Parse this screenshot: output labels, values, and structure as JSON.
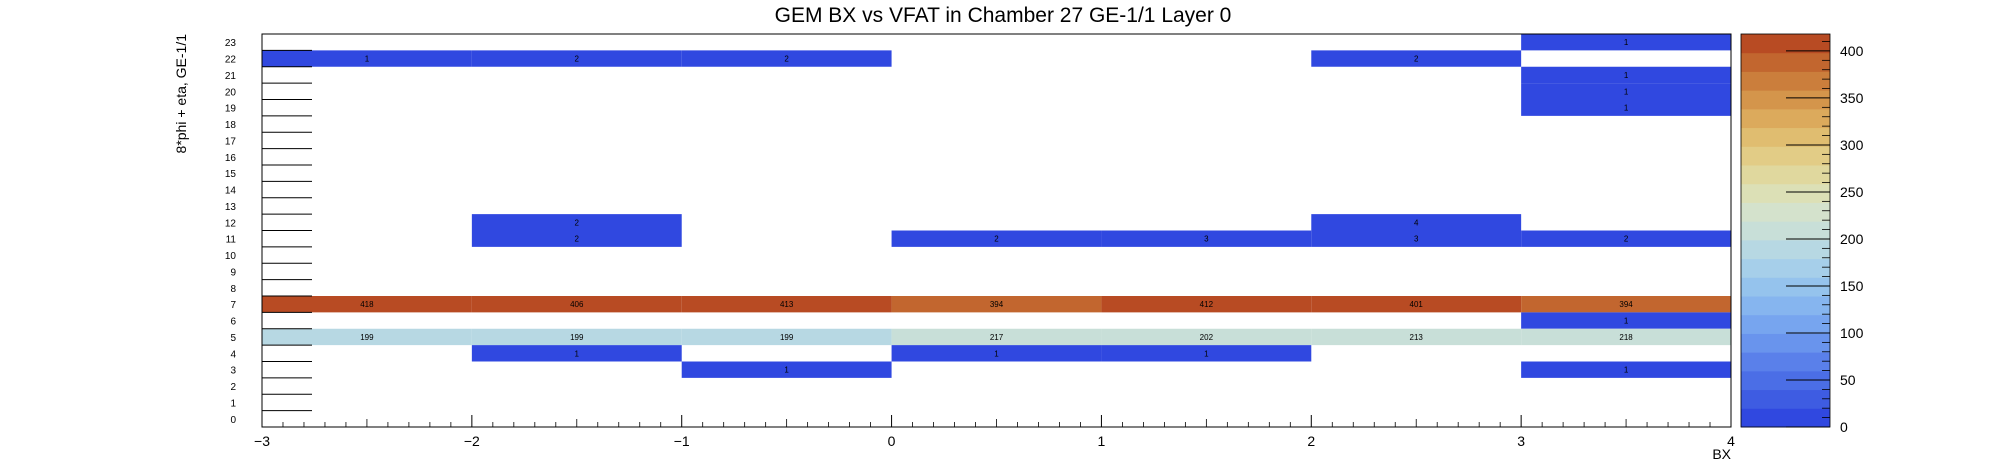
{
  "chart_data": {
    "type": "heatmap",
    "title": "GEM BX vs VFAT in Chamber 27 GE-1/1 Layer 0",
    "xlabel": "BX",
    "ylabel": "8*phi + eta, GE-1/1",
    "xlim": [
      -3,
      4
    ],
    "ylim": [
      0,
      24
    ],
    "x_ticks": [
      "−3",
      "−2",
      "−1",
      "0",
      "1",
      "2",
      "3",
      "4"
    ],
    "y_ticks": [
      "0",
      "1",
      "2",
      "3",
      "4",
      "5",
      "6",
      "7",
      "8",
      "9",
      "10",
      "11",
      "12",
      "13",
      "14",
      "15",
      "16",
      "17",
      "18",
      "19",
      "20",
      "21",
      "22",
      "23"
    ],
    "z_range": [
      0,
      418
    ],
    "colorbar_ticks": [
      "0",
      "50",
      "100",
      "150",
      "200",
      "250",
      "300",
      "350",
      "400"
    ],
    "colorbar_colors": [
      "#3048e0",
      "#3e5ce2",
      "#4b6ee6",
      "#5a80ea",
      "#6994ed",
      "#77a5ef",
      "#86b5ef",
      "#95c3ed",
      "#a6cfea",
      "#b7d8e3",
      "#c8dfd8",
      "#d4e2cc",
      "#dce0b6",
      "#e0d89e",
      "#e2cc86",
      "#e0bd70",
      "#dcaa5c",
      "#d4954b",
      "#cb7e3c",
      "#c2662f",
      "#b84b23"
    ],
    "cells": [
      {
        "x0": -3,
        "x1": -2,
        "y": 22,
        "v": 1,
        "label": "1"
      },
      {
        "x0": -2,
        "x1": -1,
        "y": 22,
        "v": 2,
        "label": "2"
      },
      {
        "x0": -1,
        "x1": 0,
        "y": 22,
        "v": 2,
        "label": "2"
      },
      {
        "x0": 2,
        "x1": 3,
        "y": 22,
        "v": 2,
        "label": "2"
      },
      {
        "x0": 3,
        "x1": 4,
        "y": 23,
        "v": 1,
        "label": "1"
      },
      {
        "x0": 3,
        "x1": 4,
        "y": 21,
        "v": 1,
        "label": "1"
      },
      {
        "x0": 3,
        "x1": 4,
        "y": 20,
        "v": 1,
        "label": "1"
      },
      {
        "x0": 3,
        "x1": 4,
        "y": 19,
        "v": 1,
        "label": "1"
      },
      {
        "x0": -2,
        "x1": -1,
        "y": 12,
        "v": 2,
        "label": "2"
      },
      {
        "x0": 2,
        "x1": 3,
        "y": 12,
        "v": 4,
        "label": "4"
      },
      {
        "x0": -2,
        "x1": -1,
        "y": 11,
        "v": 2,
        "label": "2"
      },
      {
        "x0": 0,
        "x1": 1,
        "y": 11,
        "v": 2,
        "label": "2"
      },
      {
        "x0": 1,
        "x1": 2,
        "y": 11,
        "v": 3,
        "label": "3"
      },
      {
        "x0": 2,
        "x1": 3,
        "y": 11,
        "v": 3,
        "label": "3"
      },
      {
        "x0": 3,
        "x1": 4,
        "y": 11,
        "v": 2,
        "label": "2"
      },
      {
        "x0": -3,
        "x1": -2,
        "y": 7,
        "v": 418,
        "label": "418"
      },
      {
        "x0": -2,
        "x1": -1,
        "y": 7,
        "v": 406,
        "label": "406"
      },
      {
        "x0": -1,
        "x1": 0,
        "y": 7,
        "v": 413,
        "label": "413"
      },
      {
        "x0": 0,
        "x1": 1,
        "y": 7,
        "v": 394,
        "label": "394"
      },
      {
        "x0": 1,
        "x1": 2,
        "y": 7,
        "v": 412,
        "label": "412"
      },
      {
        "x0": 2,
        "x1": 3,
        "y": 7,
        "v": 401,
        "label": "401"
      },
      {
        "x0": 3,
        "x1": 4,
        "y": 7,
        "v": 394,
        "label": "394"
      },
      {
        "x0": 3,
        "x1": 4,
        "y": 6,
        "v": 1,
        "label": "1"
      },
      {
        "x0": -3,
        "x1": -2,
        "y": 5,
        "v": 199,
        "label": "199"
      },
      {
        "x0": -2,
        "x1": -1,
        "y": 5,
        "v": 199,
        "label": "199"
      },
      {
        "x0": -1,
        "x1": 0,
        "y": 5,
        "v": 199,
        "label": "199"
      },
      {
        "x0": 0,
        "x1": 1,
        "y": 5,
        "v": 217,
        "label": "217"
      },
      {
        "x0": 1,
        "x1": 2,
        "y": 5,
        "v": 202,
        "label": "202"
      },
      {
        "x0": 2,
        "x1": 3,
        "y": 5,
        "v": 213,
        "label": "213"
      },
      {
        "x0": 3,
        "x1": 4,
        "y": 5,
        "v": 218,
        "label": "218"
      },
      {
        "x0": -2,
        "x1": -1,
        "y": 4,
        "v": 1,
        "label": "1"
      },
      {
        "x0": 0,
        "x1": 1,
        "y": 4,
        "v": 1,
        "label": "1"
      },
      {
        "x0": 1,
        "x1": 2,
        "y": 4,
        "v": 1,
        "label": "1"
      },
      {
        "x0": -1,
        "x1": 0,
        "y": 3,
        "v": 1,
        "label": "1"
      },
      {
        "x0": 3,
        "x1": 4,
        "y": 3,
        "v": 1,
        "label": "1"
      }
    ]
  }
}
